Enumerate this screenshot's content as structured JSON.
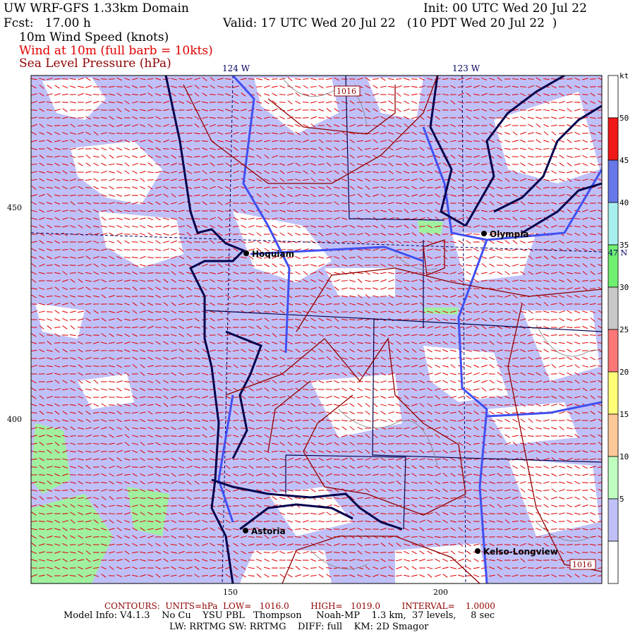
{
  "header": {
    "title": "UW WRF-GFS 1.33km Domain",
    "init": "Init: 00 UTC Wed 20 Jul 22",
    "fcst": "Fcst:   17.00 h",
    "valid": "Valid: 17 UTC Wed 20 Jul 22   (10 PDT Wed 20 Jul 22  )",
    "field1": "10m Wind Speed (knots)",
    "field2": "Wind at 10m (full barb = 10kts)",
    "field3": "Sea Level Pressure (hPa)"
  },
  "map": {
    "lon_labels": [
      "124 W",
      "123 W"
    ],
    "lat_label": "47 N",
    "y_ticks": [
      "450",
      "400"
    ],
    "x_ticks": [
      "150",
      "200"
    ],
    "cities": [
      "Hoquiam",
      "Olympia",
      "Astoria",
      "Kelso-Longview"
    ],
    "contour_labels": [
      "1016",
      "1016"
    ],
    "colors": {
      "land_fill": "#c0c0f8",
      "barb": "#e00000",
      "contour": "#900000",
      "coast": "#00004c",
      "river": "#4050f0"
    }
  },
  "colorbar": {
    "unit": "kt",
    "tick_labels": [
      "50",
      "45",
      "40",
      "35",
      "30",
      "25",
      "20",
      "15",
      "10",
      "5"
    ],
    "bands": [
      "#ffffff",
      "#f01818",
      "#6878e8",
      "#a8f0f0",
      "#70f070",
      "#c8c8c8",
      "#ff7878",
      "#ffff78",
      "#ffc898",
      "#c0ffc0",
      "#c0c0f8",
      "#ffffff"
    ]
  },
  "footer": {
    "contours": "CONTOURS:  UNITS=hPa  LOW=   1016.0        HIGH=   1019.0        INTERVAL=    1.0000",
    "model_info": "Model Info: V4.1.3    No Cu    YSU PBL   Thompson     Noah-MP    1.3 km,  37 levels,     8 sec",
    "physics": "LW: RRTMG SW: RRTMG    DIFF: full    KM: 2D Smagor"
  }
}
